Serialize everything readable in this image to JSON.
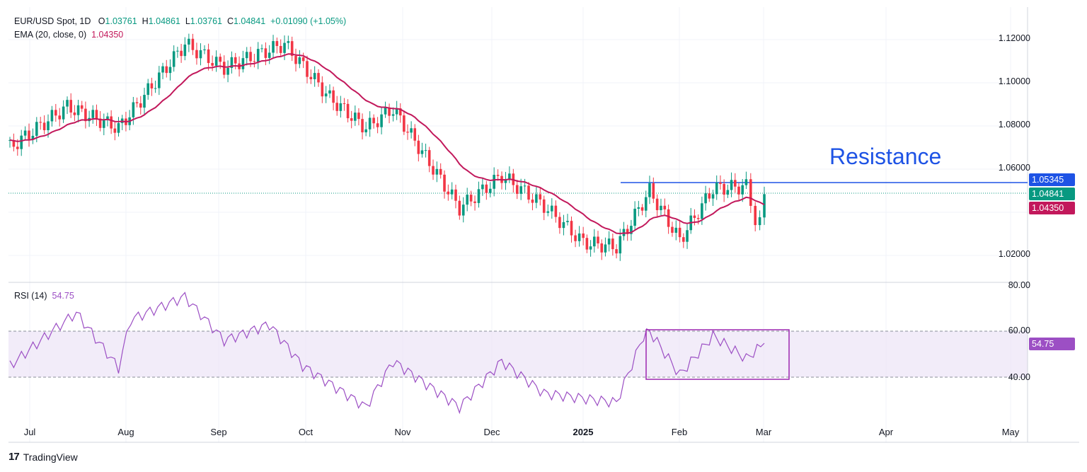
{
  "header": {
    "symbol": "EUR/USD Spot, 1D",
    "open_label": "O",
    "open": "1.03761",
    "high_label": "H",
    "high": "1.04861",
    "low_label": "L",
    "low": "1.03761",
    "close_label": "C",
    "close": "1.04841",
    "change": "+0.01090 (+1.05%)"
  },
  "ema_legend": {
    "label": "EMA (20, close, 0)",
    "value": "1.04350"
  },
  "rsi_legend": {
    "label": "RSI (14)",
    "value": "54.75"
  },
  "price_axis": [
    "1.12000",
    "1.10000",
    "1.08000",
    "1.06000",
    "1.02000"
  ],
  "rsi_axis": [
    "80.00",
    "60.00",
    "40.00"
  ],
  "time_axis": [
    "Jul",
    "Aug",
    "Sep",
    "Oct",
    "Nov",
    "Dec",
    "2025",
    "Feb",
    "Mar",
    "Apr",
    "May"
  ],
  "tags": {
    "resistance": "1.05345",
    "last_price": "1.04841",
    "ema": "1.04350",
    "rsi": "54.75"
  },
  "annotation": {
    "resistance_text": "Resistance"
  },
  "brand": "TradingView",
  "colors": {
    "bull": "#089981",
    "bear": "#f23645",
    "ema": "#c2185b",
    "rsi": "#9c4fc4",
    "resistance": "#1e53e5",
    "rsi_band": "#ede4f7"
  },
  "chart_data": [
    {
      "type": "candlestick",
      "title": "EUR/USD Spot, 1D",
      "ylim": [
        1.01,
        1.125
      ],
      "resistance_level": 1.05345,
      "last_close": 1.04841,
      "key_points": [
        {
          "date": "2024-06-26",
          "close": 1.07
        },
        {
          "date": "2024-07-15",
          "close": 1.089
        },
        {
          "date": "2024-08-01",
          "close": 1.079
        },
        {
          "date": "2024-08-23",
          "close": 1.118
        },
        {
          "date": "2024-09-05",
          "close": 1.107
        },
        {
          "date": "2024-09-25",
          "close": 1.118
        },
        {
          "date": "2024-10-10",
          "close": 1.093
        },
        {
          "date": "2024-10-22",
          "close": 1.079
        },
        {
          "date": "2024-10-31",
          "close": 1.088
        },
        {
          "date": "2024-11-12",
          "close": 1.063
        },
        {
          "date": "2024-11-22",
          "close": 1.042
        },
        {
          "date": "2024-12-06",
          "close": 1.057
        },
        {
          "date": "2024-12-20",
          "close": 1.043
        },
        {
          "date": "2025-01-02",
          "close": 1.026
        },
        {
          "date": "2025-01-13",
          "close": 1.024
        },
        {
          "date": "2025-01-24",
          "close": 1.05
        },
        {
          "date": "2025-02-03",
          "close": 1.027
        },
        {
          "date": "2025-02-14",
          "close": 1.051
        },
        {
          "date": "2025-02-25",
          "close": 1.052
        },
        {
          "date": "2025-02-28",
          "close": 1.037
        },
        {
          "date": "2025-03-03",
          "close": 1.04841
        }
      ],
      "ema_20_last": 1.0435
    },
    {
      "type": "line",
      "title": "RSI (14)",
      "ylim": [
        20,
        80
      ],
      "bands": [
        40,
        60
      ],
      "last_value": 54.75,
      "key_points": [
        {
          "date": "2024-06-26",
          "value": 45
        },
        {
          "date": "2024-07-10",
          "value": 60
        },
        {
          "date": "2024-07-18",
          "value": 68
        },
        {
          "date": "2024-08-01",
          "value": 44
        },
        {
          "date": "2024-08-05",
          "value": 65
        },
        {
          "date": "2024-08-23",
          "value": 75
        },
        {
          "date": "2024-09-05",
          "value": 56
        },
        {
          "date": "2024-09-20",
          "value": 63
        },
        {
          "date": "2024-10-01",
          "value": 45
        },
        {
          "date": "2024-10-22",
          "value": 27
        },
        {
          "date": "2024-10-31",
          "value": 47
        },
        {
          "date": "2024-11-22",
          "value": 27
        },
        {
          "date": "2024-12-06",
          "value": 47
        },
        {
          "date": "2024-12-20",
          "value": 33
        },
        {
          "date": "2025-01-13",
          "value": 29
        },
        {
          "date": "2025-01-22",
          "value": 58
        },
        {
          "date": "2025-01-24",
          "value": 60
        },
        {
          "date": "2025-02-03",
          "value": 41
        },
        {
          "date": "2025-02-14",
          "value": 58
        },
        {
          "date": "2025-02-25",
          "value": 48
        },
        {
          "date": "2025-03-03",
          "value": 54.75
        }
      ]
    }
  ]
}
